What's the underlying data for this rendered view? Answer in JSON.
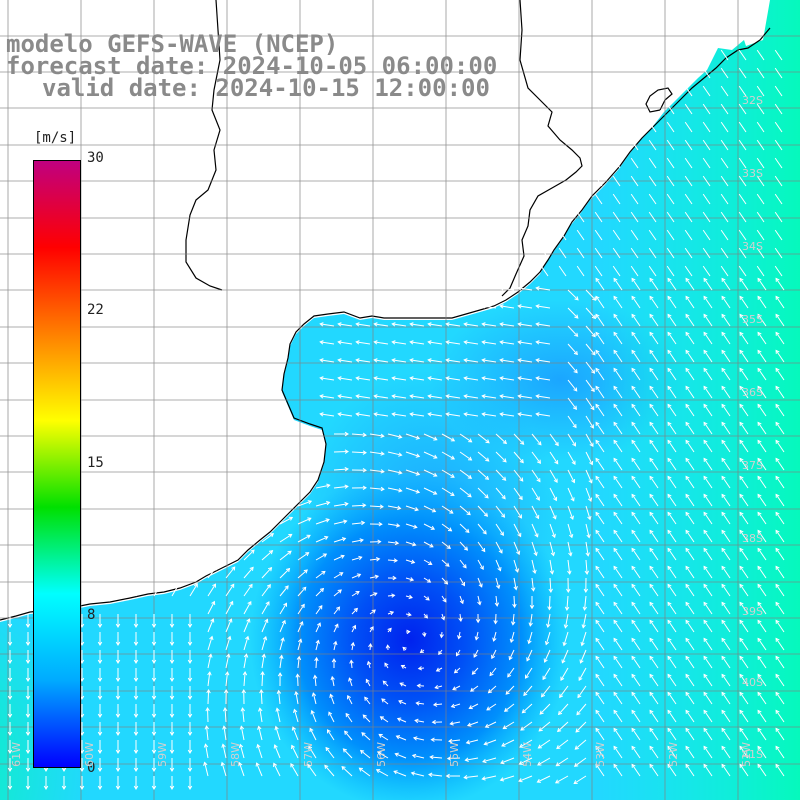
{
  "title": {
    "line1": "modelo GEFS-WAVE (NCEP)",
    "line2": "forecast date: 2024-10-05 06:00:00",
    "line3": "valid date: 2024-10-15 12:00:00"
  },
  "colorbar": {
    "unit": "[m/s]",
    "min": 0,
    "max": 30,
    "ticks": [
      "30",
      "22",
      "15",
      "8",
      "0"
    ],
    "stops": [
      "#0000ff",
      "#00aaff",
      "#00ffff",
      "#00e000",
      "#ffff00",
      "#ff8000",
      "#ff0000",
      "#c00080"
    ]
  },
  "grid": {
    "lat_labels": [
      "32S",
      "33S",
      "34S",
      "35S",
      "36S",
      "37S",
      "38S",
      "39S",
      "40S",
      "41S"
    ],
    "lon_labels": [
      "61W",
      "60W",
      "59W",
      "58W",
      "57W",
      "56W",
      "55W",
      "54W",
      "53W",
      "52W",
      "51W"
    ]
  },
  "colors": {
    "land": "#ffffff",
    "coast": "#000000",
    "gridline": "#808080",
    "arrow": "#ffffff"
  }
}
